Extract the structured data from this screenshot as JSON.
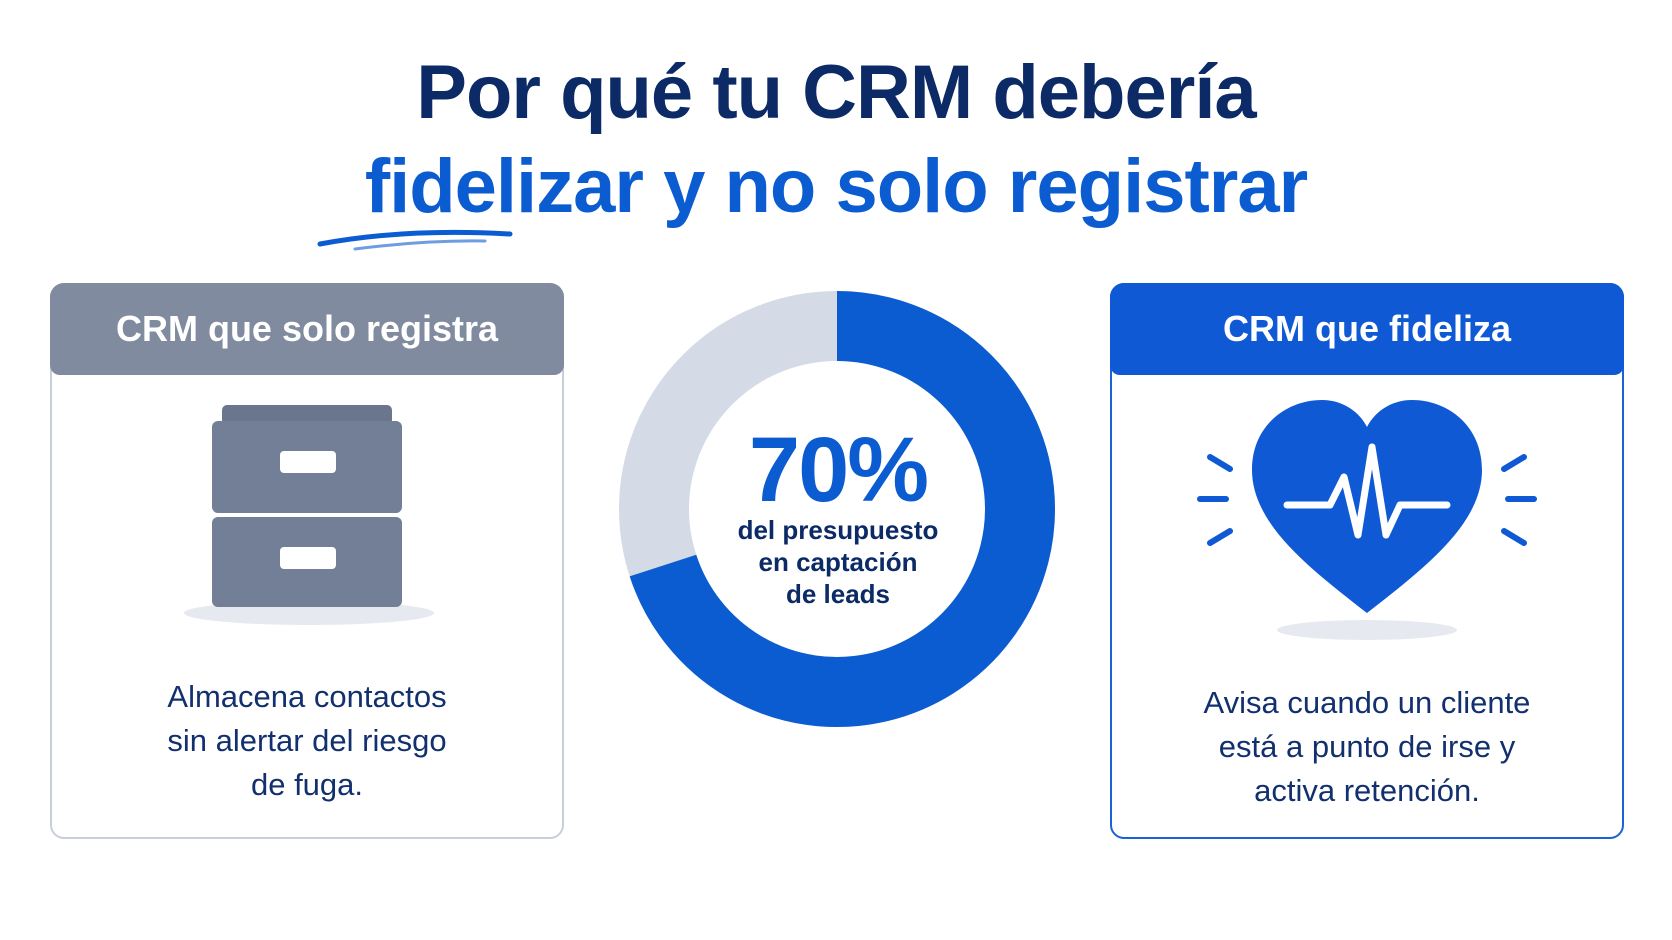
{
  "title": {
    "line1": "Por qué tu CRM debería",
    "line2": "fidelizar y no solo registrar"
  },
  "left_card": {
    "header": "CRM que solo registra",
    "icon": "filing-cabinet-icon",
    "text_lines": [
      "Almacena contactos",
      "sin alertar del riesgo",
      "de fuga."
    ]
  },
  "center": {
    "value": "70%",
    "caption_lines": [
      "del presupuesto",
      "en captación",
      "de leads"
    ],
    "fraction": 0.7
  },
  "right_card": {
    "header": "CRM que fideliza",
    "icon": "heartbeat-heart-icon",
    "text_lines": [
      "Avisa cuando un cliente",
      "está a punto de irse y",
      "activa retención."
    ]
  },
  "colors": {
    "navy": "#0b2a66",
    "blue": "#0b5cd0",
    "gray": "#808ba0",
    "light_gray": "#d4dbe6"
  }
}
